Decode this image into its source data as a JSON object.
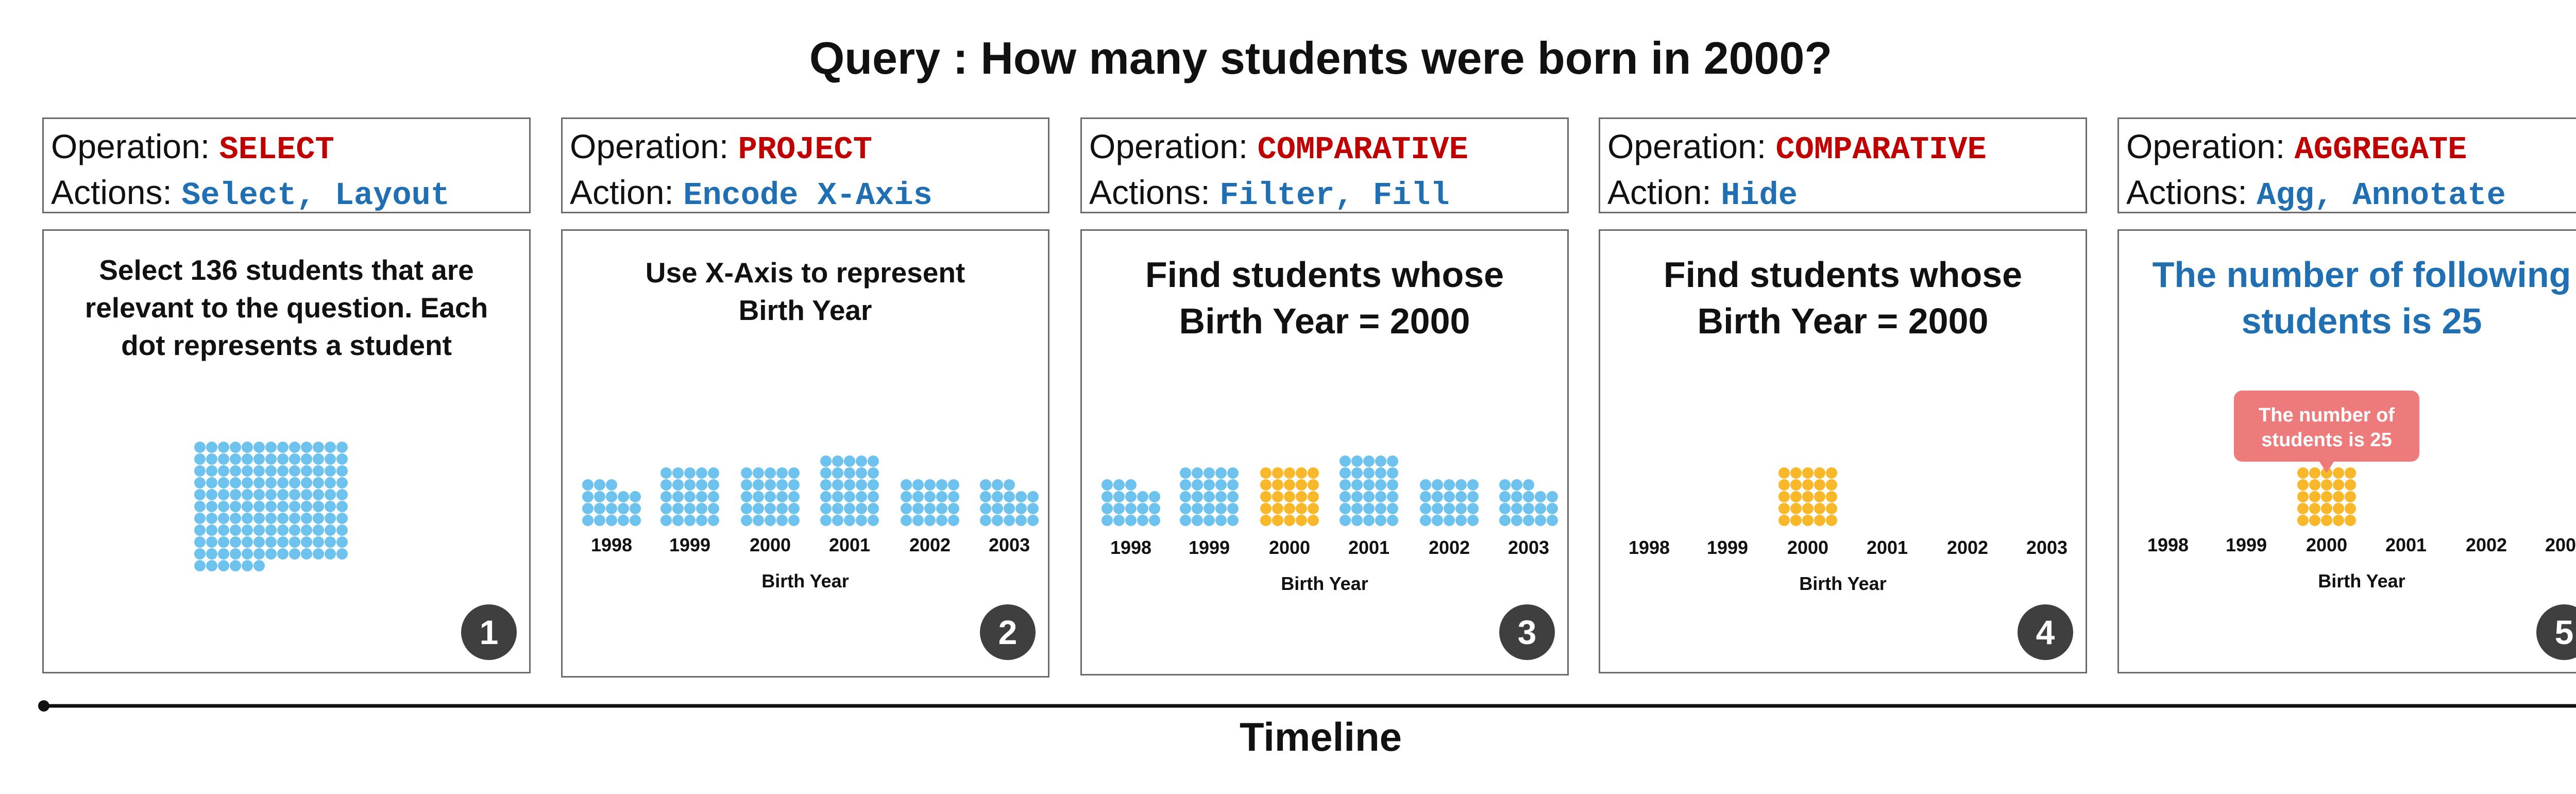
{
  "query": "Query : How many students were born in 2000?",
  "colors": {
    "operation": "#c00000",
    "action": "#1f6fb2",
    "dot_default": "#6ec3ee",
    "dot_highlight": "#f9b72a",
    "tooltip_bg": "#ee7b7b"
  },
  "steps": [
    {
      "operation_label": "Operation:",
      "operation": "SELECT",
      "action_label": "Actions:",
      "actions": "Select, Layout",
      "text_lines": [
        "Select 136 students that are",
        "relevant to the question. Each",
        "dot represents a student"
      ],
      "number": "1"
    },
    {
      "operation_label": "Operation:",
      "operation": "PROJECT",
      "action_label": "Action:",
      "actions": "Encode X-Axis",
      "text_lines": [
        "Use X-Axis to represent",
        "Birth Year"
      ],
      "number": "2"
    },
    {
      "operation_label": "Operation:",
      "operation": "COMPARATIVE",
      "action_label": "Actions:",
      "actions": "Filter, Fill",
      "text_lines": [
        "Find students whose",
        "Birth Year = 2000"
      ],
      "number": "3"
    },
    {
      "operation_label": "Operation:",
      "operation": "COMPARATIVE",
      "action_label": "Action:",
      "actions": "Hide",
      "text_lines": [
        "Find students whose",
        "Birth Year = 2000"
      ],
      "number": "4"
    },
    {
      "operation_label": "Operation:",
      "operation": "AGGREGATE",
      "action_label": "Actions:",
      "actions": "Agg, Annotate",
      "text_lines": [
        "The number of following",
        "students is 25"
      ],
      "number": "5",
      "annotation_lines": [
        "The number of",
        "students is 25"
      ]
    }
  ],
  "chart_data": {
    "type": "bar",
    "categories": [
      "1998",
      "1999",
      "2000",
      "2001",
      "2002",
      "2003"
    ],
    "values": [
      18,
      25,
      25,
      30,
      20,
      18
    ],
    "total": 136,
    "highlight": "2000",
    "xlabel": "Birth Year"
  },
  "timeline": "Timeline"
}
